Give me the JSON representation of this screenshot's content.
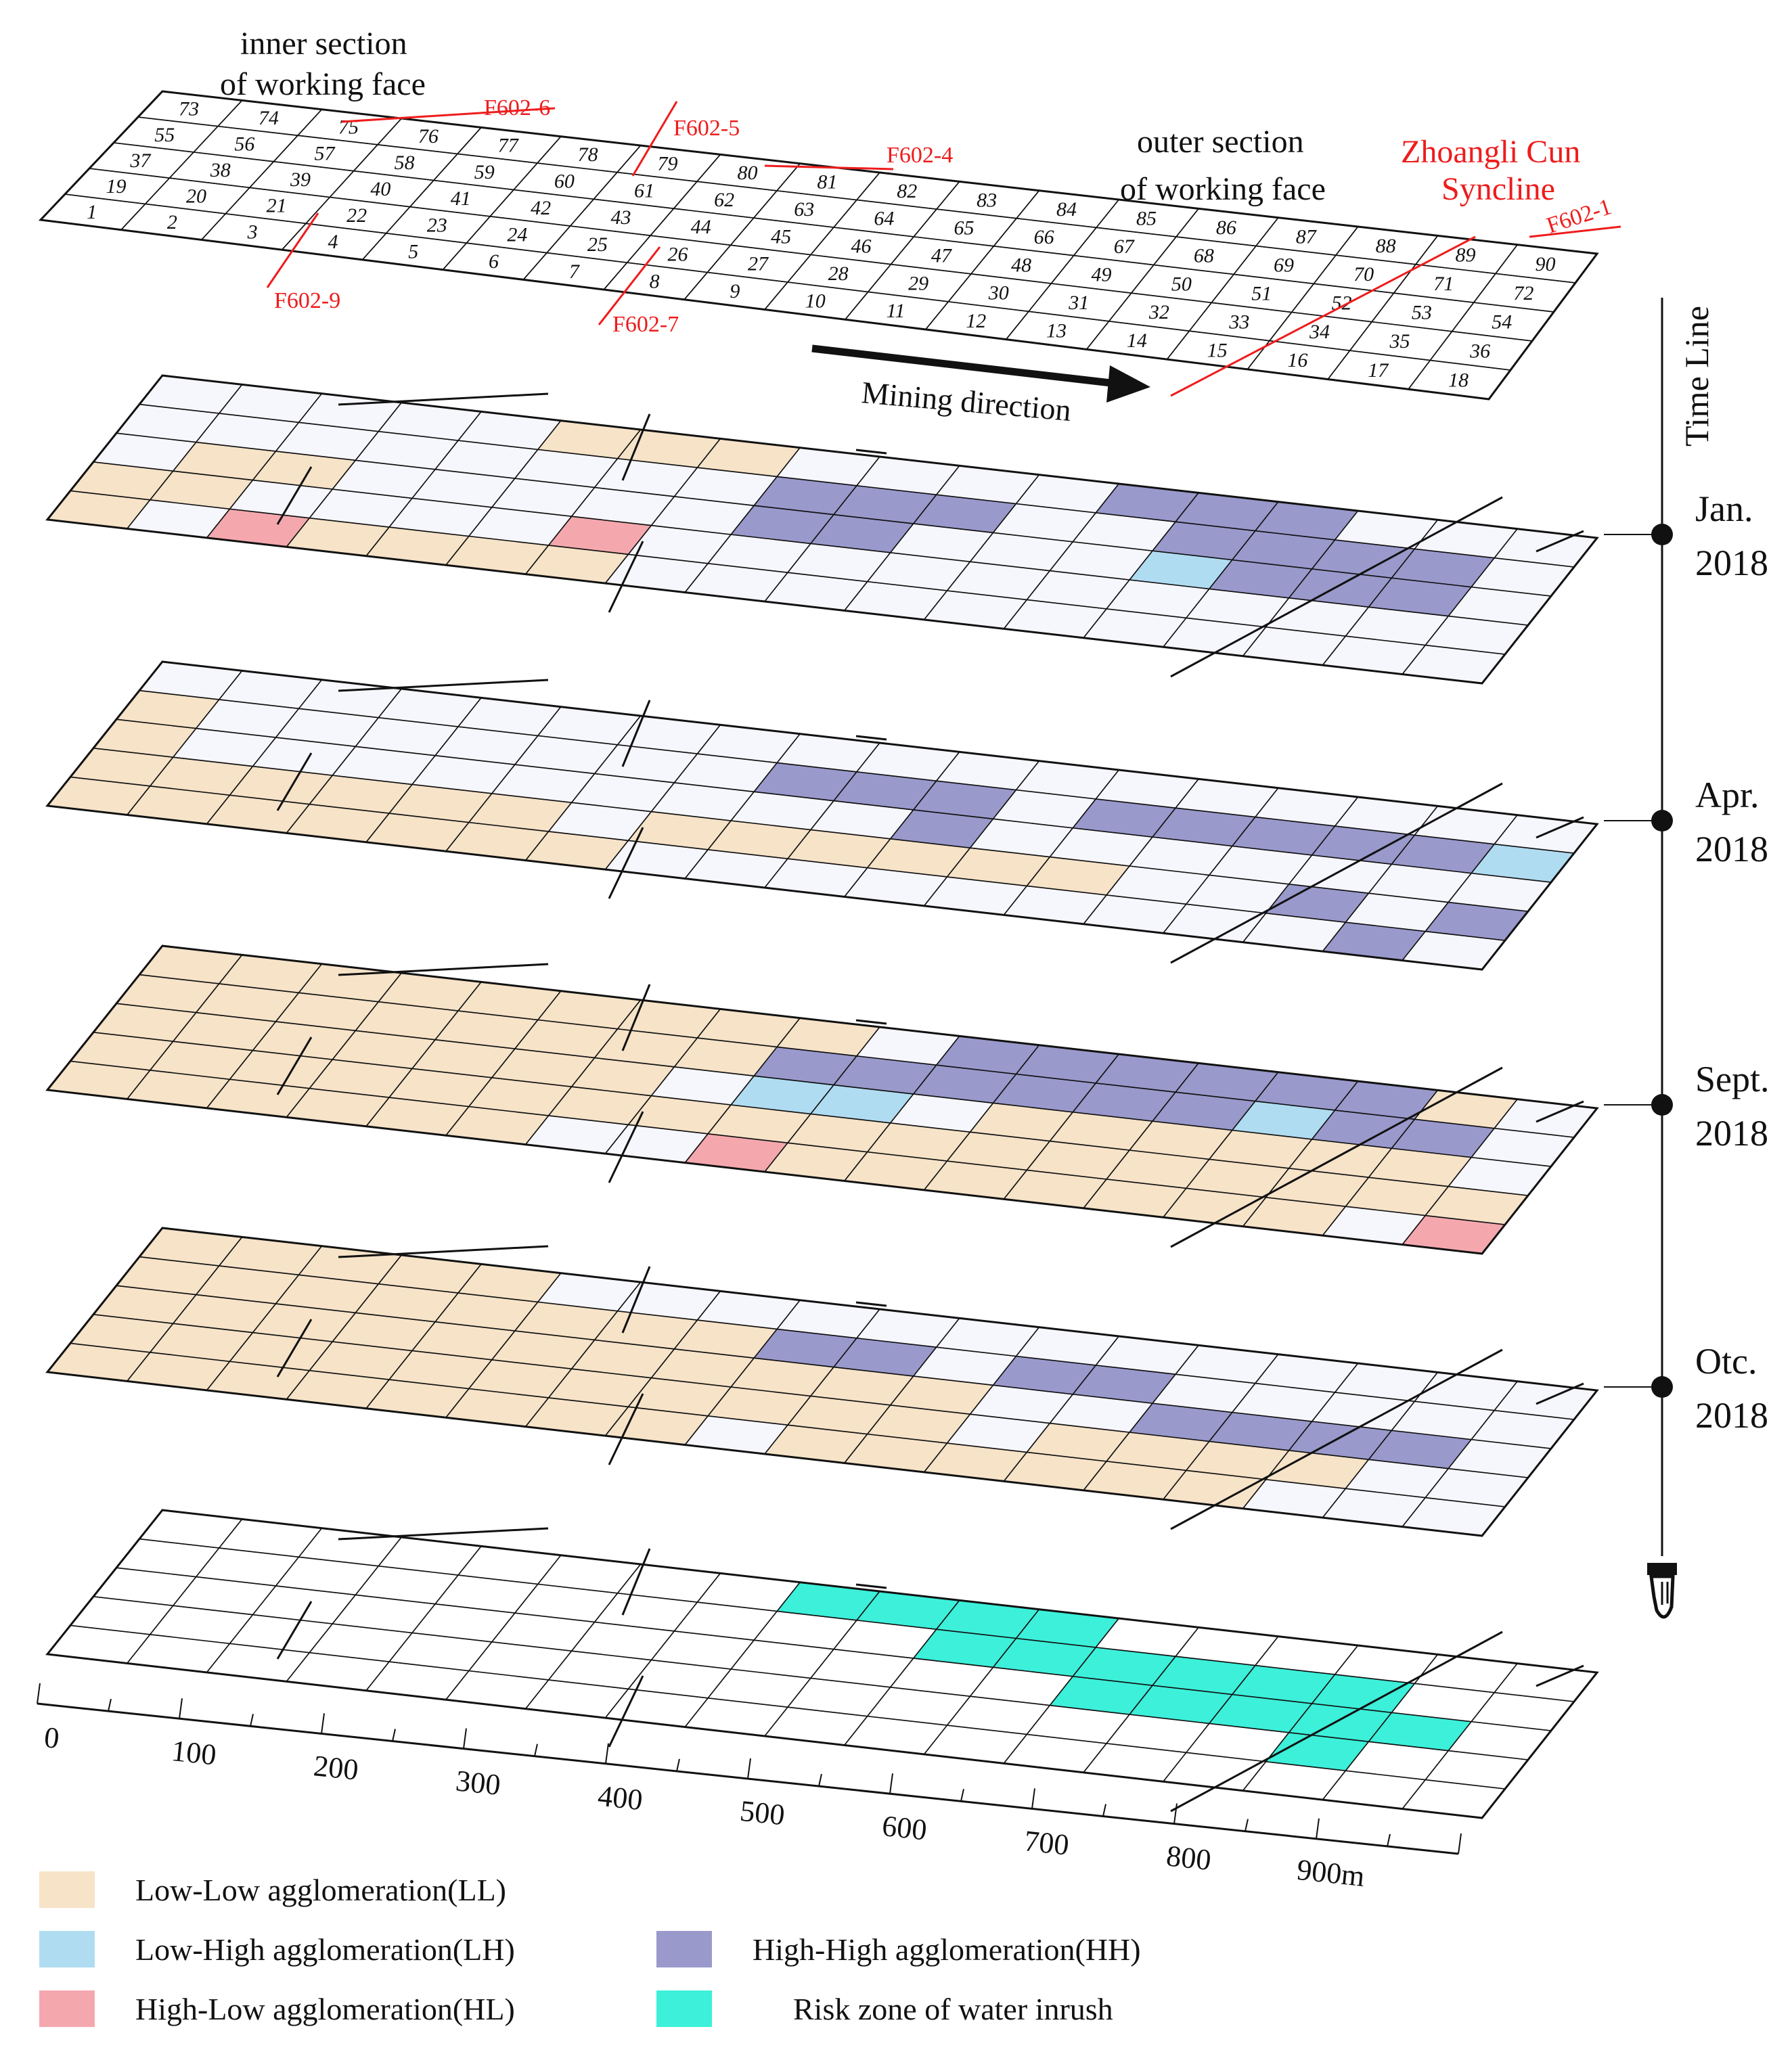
{
  "grid": {
    "cell_numbers": [
      1,
      2,
      3,
      4,
      5,
      6,
      7,
      8,
      9,
      10,
      11,
      12,
      13,
      14,
      15,
      16,
      17,
      18,
      19,
      20,
      21,
      22,
      23,
      24,
      25,
      26,
      27,
      28,
      29,
      30,
      31,
      32,
      33,
      34,
      35,
      36,
      37,
      38,
      39,
      40,
      41,
      42,
      43,
      44,
      45,
      46,
      47,
      48,
      49,
      50,
      51,
      52,
      53,
      54,
      55,
      56,
      57,
      58,
      59,
      60,
      61,
      62,
      63,
      64,
      65,
      66,
      67,
      68,
      69,
      70,
      71,
      72,
      73,
      74,
      75,
      76,
      77,
      78,
      79,
      80,
      81,
      82,
      83,
      84,
      85,
      86,
      87,
      88,
      89,
      90
    ]
  },
  "annotations": {
    "inner_section_line1": "inner section",
    "inner_section_line2": "of working face",
    "outer_section_line1": "outer section",
    "outer_section_line2": "of working face",
    "syncline_line1": "Zhoangli Cun",
    "syncline_line2": "Syncline",
    "mining_direction": "Mining direction",
    "faults": [
      "F602-6",
      "F602-5",
      "F602-4",
      "F602-1",
      "F602-9",
      "F602-7"
    ]
  },
  "timeline": {
    "title": "Time Line",
    "events": [
      {
        "month": "Jan.",
        "year": "2018"
      },
      {
        "month": "Apr.",
        "year": "2018"
      },
      {
        "month": "Sept.",
        "year": "2018"
      },
      {
        "month": "Otc.",
        "year": "2018"
      }
    ]
  },
  "axis": {
    "ticks": [
      "0",
      "100",
      "200",
      "300",
      "400",
      "500",
      "600",
      "700",
      "800",
      "900m"
    ]
  },
  "colors": {
    "LL": "#f6e3c8",
    "LH": "#b0dcf2",
    "HL": "#f4a8ae",
    "HH": "#9999cc",
    "risk": "#3cf0da",
    "nonsig": "#f6f6fd",
    "fault": "#ee1c1c"
  },
  "layers": [
    {
      "name": "Jan. 2018",
      "LL": [
        1,
        19,
        20,
        38,
        39,
        4,
        5,
        6,
        7,
        78,
        79,
        80
      ],
      "LH": [
        50
      ],
      "HL": [
        3,
        25
      ],
      "HH": [
        63,
        64,
        65,
        45,
        46,
        85,
        86,
        87,
        68,
        69,
        70,
        71,
        51,
        52,
        53
      ]
    },
    {
      "name": "Apr. 2018",
      "LL": [
        19,
        20,
        21,
        22,
        23,
        24,
        1,
        2,
        3,
        4,
        5,
        6,
        7,
        26,
        27,
        28,
        29,
        30,
        31,
        37,
        55
      ],
      "LH": [
        72
      ],
      "HH": [
        63,
        64,
        65,
        47,
        67,
        68,
        69,
        70,
        71,
        34,
        17,
        36
      ]
    },
    {
      "name": "Sept. 2018",
      "LL": [
        1,
        2,
        3,
        4,
        5,
        6,
        19,
        20,
        21,
        22,
        23,
        24,
        25,
        26,
        27,
        28,
        37,
        38,
        39,
        40,
        41,
        42,
        43,
        55,
        56,
        57,
        58,
        59,
        60,
        61,
        62,
        73,
        74,
        75,
        76,
        77,
        78,
        79,
        80,
        81,
        29,
        30,
        31,
        32,
        33,
        34,
        35,
        36,
        48,
        49,
        50,
        51,
        52,
        53,
        10,
        11,
        12,
        13,
        14,
        15,
        16,
        89
      ],
      "LH": [
        45,
        46,
        69
      ],
      "HL": [
        9,
        18
      ],
      "HH": [
        63,
        64,
        65,
        66,
        67,
        68,
        85,
        86,
        87,
        88,
        83,
        84,
        70,
        71
      ]
    },
    {
      "name": "Otc. 2018",
      "LL": [
        1,
        2,
        3,
        4,
        5,
        6,
        7,
        8,
        19,
        20,
        21,
        22,
        23,
        24,
        25,
        26,
        27,
        28,
        29,
        37,
        38,
        39,
        40,
        41,
        42,
        43,
        44,
        45,
        46,
        47,
        55,
        56,
        57,
        58,
        59,
        60,
        61,
        62,
        73,
        74,
        75,
        76,
        77,
        10,
        11,
        12,
        13,
        14,
        15,
        31,
        32,
        33,
        34
      ],
      "HH": [
        63,
        64,
        66,
        67,
        52,
        53,
        50,
        51
      ]
    },
    {
      "name": "Risk",
      "RISK": [
        81,
        82,
        83,
        84,
        65,
        66,
        67,
        68,
        69,
        70,
        49,
        50,
        51,
        52,
        53,
        34
      ]
    }
  ],
  "legend": {
    "ll": "Low-Low agglomeration(LL)",
    "lh": "Low-High agglomeration(LH)",
    "hl": "High-Low agglomeration(HL)",
    "hh": "High-High agglomeration(HH)",
    "risk": "Risk zone of water inrush"
  }
}
